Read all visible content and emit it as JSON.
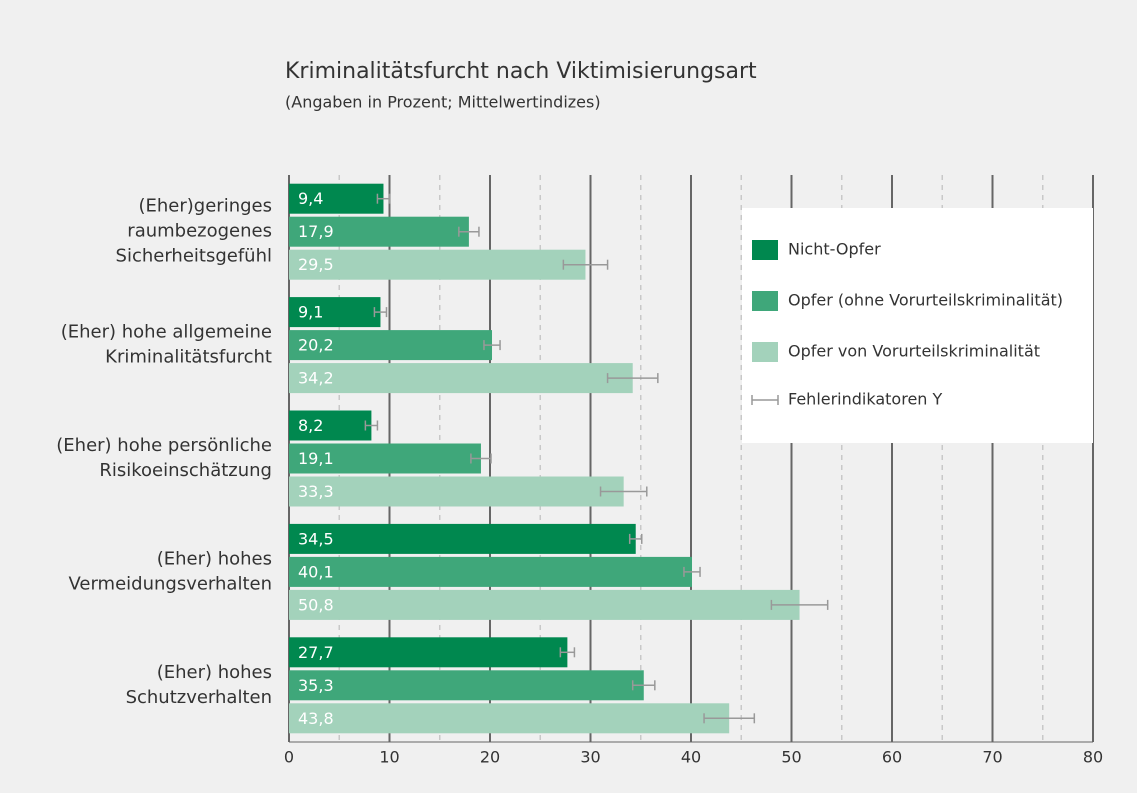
{
  "chart_data": {
    "type": "bar",
    "orientation": "horizontal",
    "title": "Kriminalitätsfurcht nach Viktimisierungsart",
    "subtitle": "(Angaben in Prozent; Mittelwertindizes)",
    "categories": [
      [
        "(Eher)geringes",
        "raumbezogenes",
        "Sicherheitsgefühl"
      ],
      [
        "(Eher) hohe allgemeine",
        "Kriminalitätsfurcht"
      ],
      [
        "(Eher) hohe persönliche",
        "Risikoeinschätzung"
      ],
      [
        "(Eher) hohes",
        "Vermeidungsverhalten"
      ],
      [
        "(Eher) hohes",
        "Schutzverhalten"
      ]
    ],
    "series": [
      {
        "name": "Nicht-Opfer",
        "color": "#00884f",
        "values": [
          9.4,
          9.1,
          8.2,
          34.5,
          27.7
        ],
        "value_labels": [
          "9,4",
          "9,1",
          "8,2",
          "34,5",
          "27,7"
        ],
        "errors": [
          0.6,
          0.6,
          0.6,
          0.6,
          0.7
        ]
      },
      {
        "name": "Opfer (ohne Vorurteilskriminalität)",
        "color": "#3fa77a",
        "values": [
          17.9,
          20.2,
          19.1,
          40.1,
          35.3
        ],
        "value_labels": [
          "17,9",
          "20,2",
          "19,1",
          "40,1",
          "35,3"
        ],
        "errors": [
          1.0,
          0.8,
          1.0,
          0.8,
          1.1
        ]
      },
      {
        "name": "Opfer von Vorurteilskriminalität",
        "color": "#a3d2bb",
        "values": [
          29.5,
          34.2,
          33.3,
          50.8,
          43.8
        ],
        "value_labels": [
          "29,5",
          "34,2",
          "33,3",
          "50,8",
          "43,8"
        ],
        "errors": [
          2.2,
          2.5,
          2.3,
          2.8,
          2.5
        ]
      }
    ],
    "error_legend": "Fehlerindikatoren Y",
    "error_color": "#999999",
    "xlim": [
      0,
      80
    ],
    "xticks": [
      0,
      10,
      20,
      30,
      40,
      50,
      60,
      70,
      80
    ],
    "xminorticks": [
      5,
      15,
      25,
      35,
      45,
      55,
      65,
      75
    ],
    "grid": true,
    "legend": "upper right"
  }
}
